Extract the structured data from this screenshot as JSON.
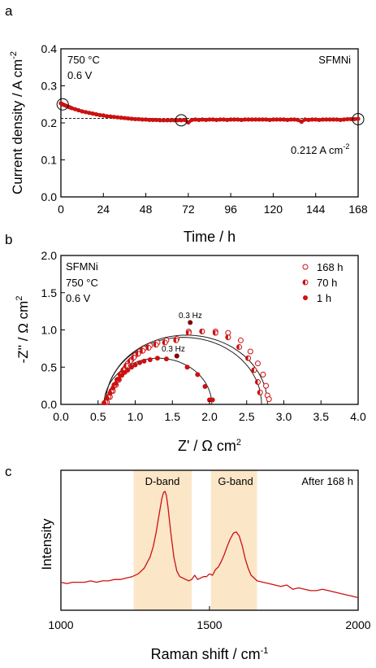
{
  "colors": {
    "series_red": "#cc1111",
    "dark_red": "#7a0a0a",
    "band_fill": "#fbe6c8",
    "axis": "#000000",
    "fit": "#222222"
  },
  "chart_data": [
    {
      "type": "scatter",
      "panel": "a",
      "xlabel": "Time / h",
      "ylabel_main": "Current density / A cm",
      "ylabel_sup": "-2",
      "xlim": [
        0,
        168
      ],
      "ylim": [
        0.0,
        0.4
      ],
      "xticks": [
        0,
        24,
        48,
        72,
        96,
        120,
        144,
        168
      ],
      "yticks": [
        "0.0",
        "0.1",
        "0.2",
        "0.3",
        "0.4"
      ],
      "annotations": {
        "temp": "750 °C",
        "voltage": "0.6 V",
        "sample": "SFMNi",
        "value_main": "0.212 A cm",
        "value_sup": "-2"
      },
      "reference_line": 0.212,
      "circled_points": [
        [
          1,
          0.25
        ],
        [
          68,
          0.207
        ],
        [
          168,
          0.21
        ]
      ],
      "x": [
        0,
        1,
        2,
        3,
        4,
        5,
        6,
        8,
        10,
        12,
        14,
        16,
        18,
        20,
        22,
        24,
        26,
        28,
        30,
        32,
        34,
        36,
        38,
        40,
        42,
        44,
        46,
        48,
        50,
        52,
        54,
        56,
        58,
        60,
        62,
        64,
        66,
        68,
        70,
        72,
        74,
        76,
        78,
        80,
        82,
        84,
        86,
        88,
        90,
        92,
        94,
        96,
        98,
        100,
        102,
        104,
        106,
        108,
        110,
        112,
        114,
        116,
        118,
        120,
        122,
        124,
        126,
        128,
        130,
        132,
        134,
        136,
        138,
        140,
        142,
        144,
        146,
        148,
        150,
        152,
        154,
        156,
        158,
        160,
        162,
        164,
        166,
        168
      ],
      "y": [
        0.253,
        0.25,
        0.248,
        0.246,
        0.244,
        0.242,
        0.24,
        0.237,
        0.234,
        0.231,
        0.229,
        0.227,
        0.225,
        0.223,
        0.221,
        0.22,
        0.218,
        0.217,
        0.216,
        0.215,
        0.214,
        0.213,
        0.212,
        0.211,
        0.21,
        0.21,
        0.209,
        0.209,
        0.208,
        0.208,
        0.208,
        0.207,
        0.207,
        0.207,
        0.207,
        0.207,
        0.207,
        0.207,
        0.208,
        0.201,
        0.208,
        0.209,
        0.208,
        0.209,
        0.208,
        0.209,
        0.209,
        0.208,
        0.209,
        0.209,
        0.208,
        0.209,
        0.209,
        0.209,
        0.208,
        0.209,
        0.209,
        0.209,
        0.209,
        0.209,
        0.209,
        0.209,
        0.208,
        0.209,
        0.209,
        0.209,
        0.209,
        0.208,
        0.209,
        0.209,
        0.208,
        0.203,
        0.209,
        0.208,
        0.209,
        0.209,
        0.208,
        0.209,
        0.209,
        0.209,
        0.209,
        0.209,
        0.208,
        0.209,
        0.21,
        0.21,
        0.21,
        0.211
      ]
    },
    {
      "type": "scatter",
      "panel": "b",
      "xlabel": "Z' / Ω cm",
      "xlabel_sup": "2",
      "ylabel": "-Z'' / Ω cm",
      "ylabel_sup": "2",
      "xlim": [
        0.0,
        4.0
      ],
      "ylim": [
        0.0,
        2.0
      ],
      "xticks": [
        "0.0",
        "0.5",
        "1.0",
        "1.5",
        "2.0",
        "2.5",
        "3.0",
        "3.5",
        "4.0"
      ],
      "yticks": [
        "0.0",
        "0.5",
        "1.0",
        "1.5",
        "2.0"
      ],
      "annotations": {
        "sample": "SFMNi",
        "temp": "750 °C",
        "voltage": "0.6 V",
        "freq_outer": "0.3 Hz",
        "freq_inner": "0.3 Hz"
      },
      "series": [
        {
          "name": "168 h",
          "marker": "open",
          "x": [
            0.62,
            0.66,
            0.7,
            0.74,
            0.78,
            0.82,
            0.86,
            0.9,
            0.95,
            1.0,
            1.06,
            1.12,
            1.2,
            1.3,
            1.42,
            1.56,
            1.72,
            1.9,
            2.08,
            2.25,
            2.42,
            2.55,
            2.65,
            2.72,
            2.76,
            2.78,
            2.8
          ],
          "y": [
            0.03,
            0.1,
            0.18,
            0.26,
            0.33,
            0.41,
            0.48,
            0.55,
            0.6,
            0.66,
            0.71,
            0.75,
            0.79,
            0.83,
            0.86,
            0.88,
            0.98,
            0.98,
            0.98,
            0.96,
            0.86,
            0.71,
            0.55,
            0.4,
            0.25,
            0.12,
            0.07
          ]
        },
        {
          "name": "70 h",
          "marker": "half",
          "x": [
            0.6,
            0.64,
            0.68,
            0.72,
            0.76,
            0.8,
            0.84,
            0.88,
            0.93,
            0.98,
            1.04,
            1.1,
            1.18,
            1.28,
            1.4,
            1.55,
            1.72,
            1.9,
            2.08,
            2.25,
            2.4,
            2.52,
            2.6,
            2.65,
            2.68
          ],
          "y": [
            0.03,
            0.1,
            0.18,
            0.26,
            0.33,
            0.4,
            0.46,
            0.52,
            0.58,
            0.63,
            0.68,
            0.72,
            0.76,
            0.8,
            0.83,
            0.86,
            0.96,
            0.98,
            0.96,
            0.9,
            0.77,
            0.62,
            0.46,
            0.3,
            0.16
          ]
        },
        {
          "name": "1 h",
          "marker": "filled",
          "x": [
            0.58,
            0.62,
            0.66,
            0.7,
            0.74,
            0.78,
            0.82,
            0.86,
            0.9,
            0.95,
            1.0,
            1.06,
            1.12,
            1.2,
            1.3,
            1.42,
            1.56,
            1.7,
            1.84,
            1.94,
            2.0,
            2.04
          ],
          "y": [
            0.02,
            0.08,
            0.15,
            0.22,
            0.28,
            0.34,
            0.39,
            0.43,
            0.46,
            0.5,
            0.53,
            0.56,
            0.58,
            0.6,
            0.62,
            0.61,
            0.65,
            0.5,
            0.4,
            0.24,
            0.06,
            0.06
          ]
        }
      ],
      "highlight_points": [
        [
          1.74,
          1.1
        ],
        [
          1.56,
          0.65
        ]
      ]
    },
    {
      "type": "line",
      "panel": "c",
      "xlabel": "Raman shift / cm",
      "xlabel_sup": "-1",
      "ylabel": "Intensity",
      "xlim": [
        1000,
        2000
      ],
      "xticks": [
        "1000",
        "1500",
        "2000"
      ],
      "annotations": {
        "d_band": "D-band",
        "g_band": "G-band",
        "condition": "After 168 h"
      },
      "bands": [
        [
          1245,
          1440
        ],
        [
          1505,
          1660
        ]
      ],
      "x": [
        1000,
        1020,
        1040,
        1060,
        1080,
        1100,
        1120,
        1140,
        1160,
        1180,
        1200,
        1220,
        1240,
        1260,
        1280,
        1300,
        1310,
        1320,
        1330,
        1340,
        1345,
        1350,
        1355,
        1360,
        1370,
        1380,
        1390,
        1400,
        1410,
        1420,
        1430,
        1440,
        1450,
        1460,
        1470,
        1480,
        1490,
        1500,
        1510,
        1520,
        1530,
        1540,
        1550,
        1560,
        1570,
        1580,
        1590,
        1600,
        1610,
        1620,
        1630,
        1640,
        1650,
        1660,
        1680,
        1700,
        1720,
        1740,
        1760,
        1780,
        1800,
        1820,
        1840,
        1860,
        1880,
        1900,
        1920,
        1940,
        1960,
        1980,
        2000
      ],
      "y": [
        0.2,
        0.19,
        0.2,
        0.2,
        0.2,
        0.21,
        0.2,
        0.21,
        0.21,
        0.22,
        0.22,
        0.23,
        0.24,
        0.26,
        0.3,
        0.38,
        0.45,
        0.55,
        0.68,
        0.8,
        0.84,
        0.85,
        0.82,
        0.74,
        0.55,
        0.38,
        0.28,
        0.24,
        0.23,
        0.22,
        0.21,
        0.22,
        0.25,
        0.22,
        0.23,
        0.24,
        0.24,
        0.26,
        0.25,
        0.29,
        0.31,
        0.35,
        0.4,
        0.46,
        0.51,
        0.55,
        0.56,
        0.53,
        0.46,
        0.37,
        0.3,
        0.25,
        0.23,
        0.21,
        0.2,
        0.19,
        0.18,
        0.17,
        0.18,
        0.15,
        0.16,
        0.15,
        0.14,
        0.14,
        0.15,
        0.14,
        0.13,
        0.12,
        0.11,
        0.1,
        0.09
      ]
    }
  ]
}
